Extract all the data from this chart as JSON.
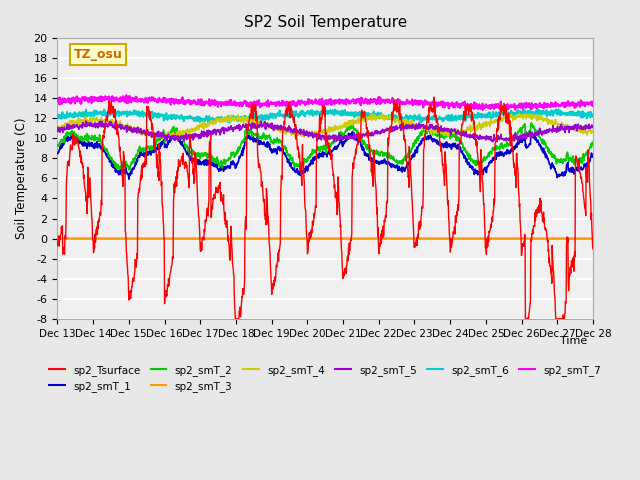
{
  "title": "SP2 Soil Temperature",
  "ylabel": "Soil Temperature (C)",
  "xlabel": "Time",
  "xlim": [
    13,
    28
  ],
  "ylim": [
    -8,
    20
  ],
  "yticks": [
    -8,
    -6,
    -4,
    -2,
    0,
    2,
    4,
    6,
    8,
    10,
    12,
    14,
    16,
    18,
    20
  ],
  "xtick_labels": [
    "Dec 13",
    "Dec 14",
    "Dec 15",
    "Dec 16",
    "Dec 17",
    "Dec 18",
    "Dec 19",
    "Dec 20",
    "Dec 21",
    "Dec 22",
    "Dec 23",
    "Dec 24",
    "Dec 25",
    "Dec 26",
    "Dec 27",
    "Dec 28"
  ],
  "background_color": "#e8e8e8",
  "plot_background": "#f0f0f0",
  "grid_color": "#ffffff",
  "annotation_text": "TZ_osu",
  "annotation_bgcolor": "#ffffcc",
  "annotation_edgecolor": "#ccaa00",
  "series_colors": {
    "sp2_Tsurface": "#ff0000",
    "sp2_smT_1": "#0000cc",
    "sp2_smT_2": "#00cc00",
    "sp2_smT_3": "#ff9900",
    "sp2_smT_4": "#cccc00",
    "sp2_smT_5": "#9900cc",
    "sp2_smT_6": "#00cccc",
    "sp2_smT_7": "#ff00ff"
  }
}
